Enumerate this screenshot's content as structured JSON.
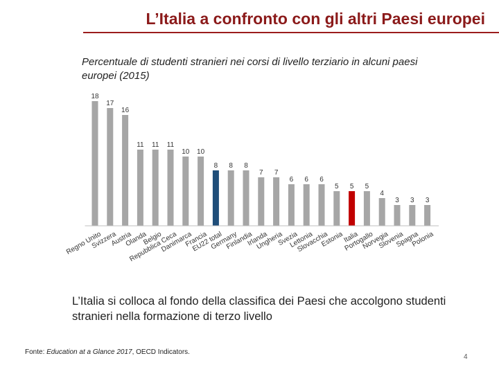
{
  "slide": {
    "title": "L’Italia a confronto con gli altri Paesi europei",
    "caption": "L’Italia si colloca al fondo della classifica dei Paesi che accolgono studenti stranieri nella formazione di terzo livello",
    "source_prefix": "Fonte: ",
    "source_title": "Education at a Glance 2017",
    "source_suffix": ", OECD Indicators.",
    "page_number": "4"
  },
  "chart_data": {
    "type": "bar",
    "title": "Percentuale di studenti stranieri nei corsi di livello terziario in alcuni paesi europei (2015)",
    "xlabel": "",
    "ylabel": "",
    "ylim": [
      0,
      18
    ],
    "grid": false,
    "legend": "none",
    "categories": [
      "Regno Unito",
      "Svizzera",
      "Austria",
      "Olanda",
      "Belgio",
      "Repubblica Ceca",
      "Danimarca",
      "Francia",
      "EU22 total",
      "Germany",
      "Finlandia",
      "Irlanda",
      "Ungheria",
      "Svezia",
      "Lettonia",
      "Slovacchia",
      "Estonia",
      "Italia",
      "Portogallo",
      "Norvegia",
      "Slovenia",
      "Spagna",
      "Polonia"
    ],
    "values": [
      18,
      17,
      16,
      11,
      11,
      11,
      10,
      10,
      8,
      8,
      8,
      7,
      7,
      6,
      6,
      6,
      5,
      5,
      5,
      4,
      3,
      3,
      3
    ],
    "highlight": {
      "EU22 total": "#1f4e79",
      "Italia": "#c00000"
    },
    "default_color": "#a6a6a6"
  }
}
